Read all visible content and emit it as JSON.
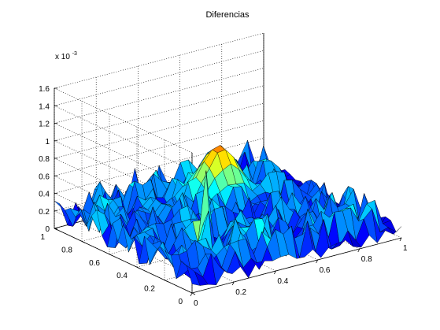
{
  "chart_data": {
    "type": "surface",
    "title": "Diferencias",
    "z_exponent_label": "x 10",
    "z_exponent_power": "-3",
    "x_ticks": [
      "0",
      "0.2",
      "0.4",
      "0.6",
      "0.8",
      "1"
    ],
    "x_tick_values": [
      0,
      0.2,
      0.4,
      0.6,
      0.8,
      1
    ],
    "y_ticks": [
      "0",
      "0.2",
      "0.4",
      "0.6",
      "0.8",
      "1"
    ],
    "y_tick_values": [
      0,
      0.2,
      0.4,
      0.6,
      0.8,
      1
    ],
    "z_ticks": [
      "0",
      "0.2",
      "0.4",
      "0.6",
      "0.8",
      "1",
      "1.2",
      "1.4",
      "1.6"
    ],
    "z_tick_values": [
      0,
      0.2,
      0.4,
      0.6,
      0.8,
      1.0,
      1.2,
      1.4,
      1.6
    ],
    "xlim": [
      0,
      1
    ],
    "ylim": [
      0,
      1
    ],
    "zlim": [
      0,
      1.6
    ],
    "z_units_scale": 0.001,
    "grid": true,
    "colormap": "jet",
    "colormap_stops": [
      "#00008f",
      "#0000ff",
      "#00ffff",
      "#ffff00",
      "#ff0000",
      "#800000"
    ],
    "surface_features": {
      "background_noise_max": 0.45,
      "hump": {
        "x": 0.6,
        "y": 0.72,
        "peak": 0.72
      },
      "spikes": [
        {
          "x": 0.26,
          "y": 0.3,
          "peak": 1.0
        },
        {
          "x": 0.24,
          "y": 0.22,
          "peak": 0.62
        },
        {
          "x": 0.32,
          "y": 0.14,
          "peak": 0.55
        },
        {
          "x": 0.48,
          "y": 0.16,
          "peak": 0.5
        },
        {
          "x": 0.5,
          "y": 0.05,
          "peak": 0.42
        },
        {
          "x": 0.16,
          "y": 0.3,
          "peak": 0.42
        },
        {
          "x": 0.72,
          "y": 0.4,
          "peak": 0.4
        }
      ]
    }
  }
}
